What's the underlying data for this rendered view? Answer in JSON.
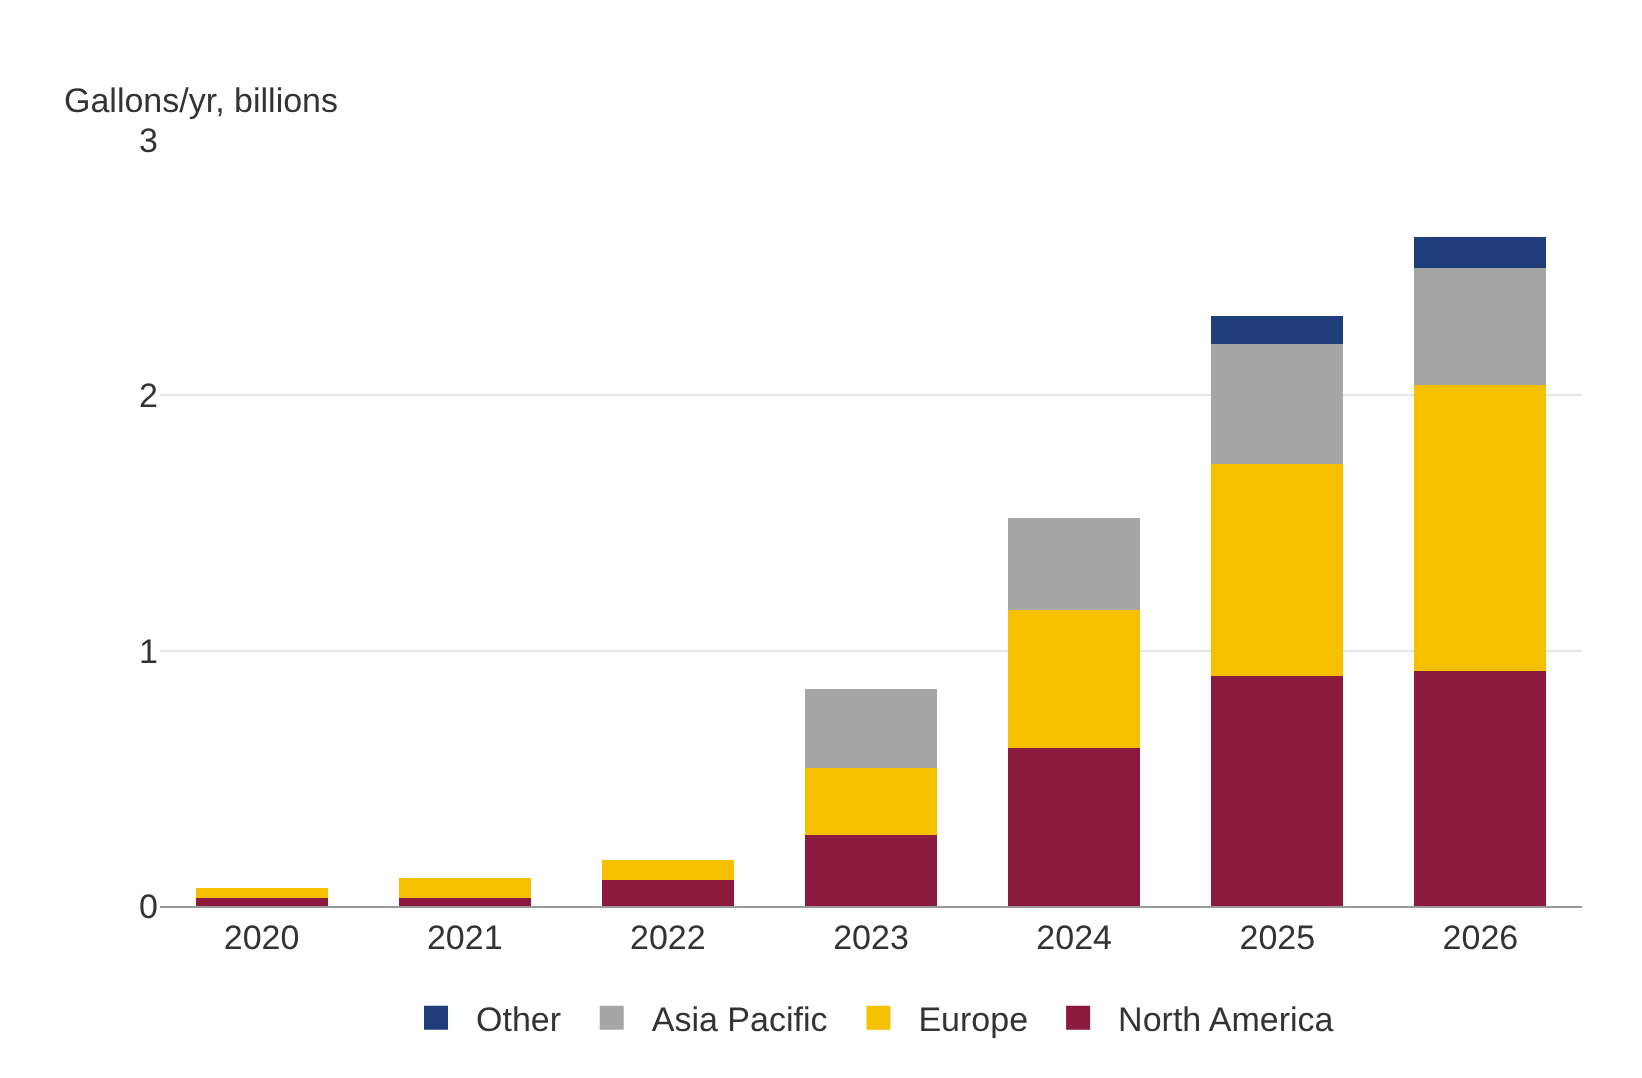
{
  "chart_data": {
    "type": "bar",
    "stacked": true,
    "ylabel": "Gallons/yr, billions",
    "categories": [
      "2020",
      "2021",
      "2022",
      "2023",
      "2024",
      "2025",
      "2026"
    ],
    "series": [
      {
        "name": "North America",
        "color": "#8b1a3f",
        "values": [
          0.03,
          0.03,
          0.1,
          0.28,
          0.62,
          0.9,
          0.92
        ]
      },
      {
        "name": "Europe",
        "color": "#f5c000",
        "values": [
          0.04,
          0.08,
          0.08,
          0.26,
          0.54,
          0.83,
          1.12
        ]
      },
      {
        "name": "Asia Pacific",
        "color": "#a6a6a6",
        "values": [
          0,
          0,
          0,
          0.31,
          0.36,
          0.47,
          0.46
        ]
      },
      {
        "name": "Other",
        "color": "#1f3d7a",
        "values": [
          0,
          0,
          0,
          0,
          0,
          0.11,
          0.12
        ]
      }
    ],
    "ylim": [
      0,
      3
    ],
    "yticks": [
      0,
      1,
      2,
      3
    ],
    "grid": "y",
    "legend": "bottom"
  }
}
